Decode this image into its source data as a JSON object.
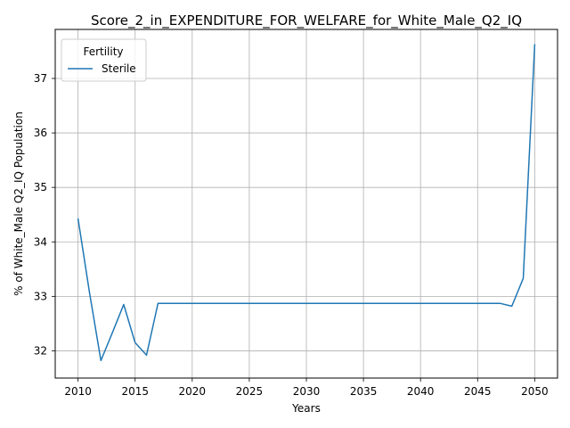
{
  "chart_data": {
    "type": "line",
    "title": "Score_2_in_EXPENDITURE_FOR_WELFARE_for_White_Male_Q2_IQ",
    "xlabel": "Years",
    "ylabel": "% of White_Male Q2_IQ Population",
    "xlim": [
      2008.0,
      2052.0
    ],
    "ylim": [
      31.5,
      37.9
    ],
    "xticks": [
      2010,
      2015,
      2020,
      2025,
      2030,
      2035,
      2040,
      2045,
      2050
    ],
    "yticks": [
      32,
      33,
      34,
      35,
      36,
      37
    ],
    "grid": true,
    "legend": {
      "title": "Fertility",
      "placement": "upper-left"
    },
    "series": [
      {
        "name": "Sterile",
        "color": "#1f77b4",
        "x": [
          2010,
          2011,
          2012,
          2013,
          2014,
          2015,
          2016,
          2017,
          2018,
          2019,
          2020,
          2021,
          2022,
          2023,
          2024,
          2025,
          2026,
          2027,
          2028,
          2029,
          2030,
          2031,
          2032,
          2033,
          2034,
          2035,
          2036,
          2037,
          2038,
          2039,
          2040,
          2041,
          2042,
          2043,
          2044,
          2045,
          2046,
          2047,
          2048,
          2049,
          2050
        ],
        "y": [
          34.43,
          33.07,
          31.82,
          32.33,
          32.85,
          32.15,
          31.92,
          32.87,
          32.87,
          32.87,
          32.87,
          32.87,
          32.87,
          32.87,
          32.87,
          32.87,
          32.87,
          32.87,
          32.87,
          32.87,
          32.87,
          32.87,
          32.87,
          32.87,
          32.87,
          32.87,
          32.87,
          32.87,
          32.87,
          32.87,
          32.87,
          32.87,
          32.87,
          32.87,
          32.87,
          32.87,
          32.87,
          32.87,
          32.82,
          33.33,
          37.63
        ]
      }
    ]
  }
}
